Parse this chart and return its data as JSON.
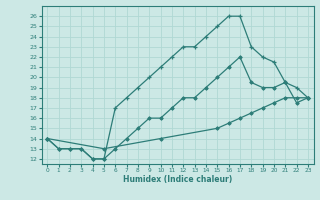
{
  "xlabel": "Humidex (Indice chaleur)",
  "background_color": "#cce8e5",
  "line_color": "#2d7d78",
  "grid_color": "#b0d8d4",
  "xlim": [
    -0.5,
    23.5
  ],
  "ylim": [
    11.5,
    27.0
  ],
  "yticks": [
    12,
    13,
    14,
    15,
    16,
    17,
    18,
    19,
    20,
    21,
    22,
    23,
    24,
    25,
    26
  ],
  "xticks": [
    0,
    1,
    2,
    3,
    4,
    5,
    6,
    7,
    8,
    9,
    10,
    11,
    12,
    13,
    14,
    15,
    16,
    17,
    18,
    19,
    20,
    21,
    22,
    23
  ],
  "curve1_x": [
    0,
    1,
    2,
    3,
    4,
    5,
    6,
    7,
    8,
    9,
    10,
    11,
    12,
    13,
    14,
    15,
    16,
    17,
    18,
    19,
    20,
    21,
    22,
    23
  ],
  "curve1_y": [
    14,
    13,
    13,
    13,
    12,
    12,
    17,
    18,
    19,
    20,
    21,
    22,
    23,
    23,
    24,
    25,
    26,
    26,
    23,
    22,
    21.5,
    19.5,
    19,
    18
  ],
  "curve2_x": [
    0,
    1,
    2,
    3,
    4,
    5,
    6,
    7,
    8,
    9,
    10,
    11,
    12,
    13,
    14,
    15,
    16,
    17,
    18,
    19,
    20,
    21,
    22,
    23
  ],
  "curve2_y": [
    14,
    13,
    13,
    13,
    12,
    12,
    13,
    14,
    15,
    16,
    16,
    17,
    18,
    18,
    19,
    20,
    21,
    22,
    19.5,
    19,
    19,
    19.5,
    17.5,
    18
  ],
  "curve3_x": [
    0,
    5,
    10,
    15,
    16,
    17,
    18,
    19,
    20,
    21,
    22,
    23
  ],
  "curve3_y": [
    14,
    13,
    14,
    15,
    15.5,
    16,
    16.5,
    17,
    17.5,
    18,
    18,
    18
  ]
}
